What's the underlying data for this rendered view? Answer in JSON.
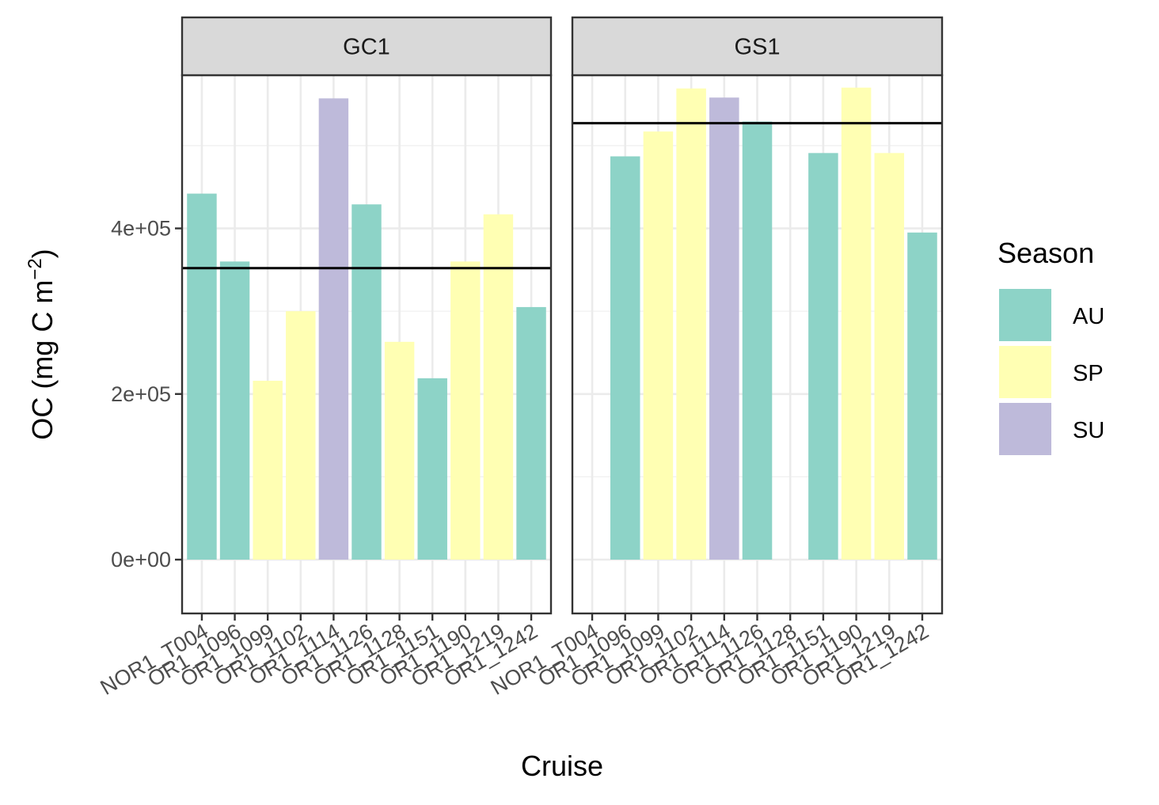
{
  "chart_data": {
    "type": "bar",
    "xlabel": "Cruise",
    "ylabel": "OC (mg C m",
    "ylabel_superscript": "−2",
    "ylabel_close": ")",
    "ylim": [
      -65000,
      585000
    ],
    "yticks": [
      0,
      200000,
      400000
    ],
    "ytick_labels": [
      "0e+00",
      "2e+05",
      "4e+05"
    ],
    "categories": [
      "NOR1_T004",
      "OR1_1096",
      "OR1_1099",
      "OR1_1102",
      "OR1_1114",
      "OR1_1126",
      "OR1_1128",
      "OR1_1151",
      "OR1_1190",
      "OR1_1219",
      "OR1_1242"
    ],
    "legend": {
      "title": "Season",
      "position": "right",
      "entries": [
        {
          "label": "AU",
          "color": "#8dd3c7"
        },
        {
          "label": "SP",
          "color": "#ffffb3"
        },
        {
          "label": "SU",
          "color": "#bebada"
        }
      ]
    },
    "panels": [
      {
        "strip": "GC1",
        "hline": 352000,
        "bars": [
          {
            "cruise": "NOR1_T004",
            "value": 442000,
            "season": "AU"
          },
          {
            "cruise": "OR1_1096",
            "value": 360000,
            "season": "AU"
          },
          {
            "cruise": "OR1_1099",
            "value": 216000,
            "season": "SP"
          },
          {
            "cruise": "OR1_1102",
            "value": 300000,
            "season": "SP"
          },
          {
            "cruise": "OR1_1114",
            "value": 557000,
            "season": "SU"
          },
          {
            "cruise": "OR1_1126",
            "value": 429000,
            "season": "AU"
          },
          {
            "cruise": "OR1_1128",
            "value": 263000,
            "season": "SP"
          },
          {
            "cruise": "OR1_1151",
            "value": 219000,
            "season": "AU"
          },
          {
            "cruise": "OR1_1190",
            "value": 360000,
            "season": "SP"
          },
          {
            "cruise": "OR1_1219",
            "value": 417000,
            "season": "SP"
          },
          {
            "cruise": "OR1_1242",
            "value": 305000,
            "season": "AU"
          }
        ]
      },
      {
        "strip": "GS1",
        "hline": 527000,
        "bars": [
          {
            "cruise": "OR1_1096",
            "value": 487000,
            "season": "AU"
          },
          {
            "cruise": "OR1_1099",
            "value": 517000,
            "season": "SP"
          },
          {
            "cruise": "OR1_1102",
            "value": 569000,
            "season": "SP"
          },
          {
            "cruise": "OR1_1114",
            "value": 558000,
            "season": "SU"
          },
          {
            "cruise": "OR1_1126",
            "value": 529000,
            "season": "AU"
          },
          {
            "cruise": "OR1_1151",
            "value": 491000,
            "season": "AU"
          },
          {
            "cruise": "OR1_1190",
            "value": 570000,
            "season": "SP"
          },
          {
            "cruise": "OR1_1219",
            "value": 491000,
            "season": "SP"
          },
          {
            "cruise": "OR1_1242",
            "value": 395000,
            "season": "AU"
          }
        ]
      }
    ]
  }
}
